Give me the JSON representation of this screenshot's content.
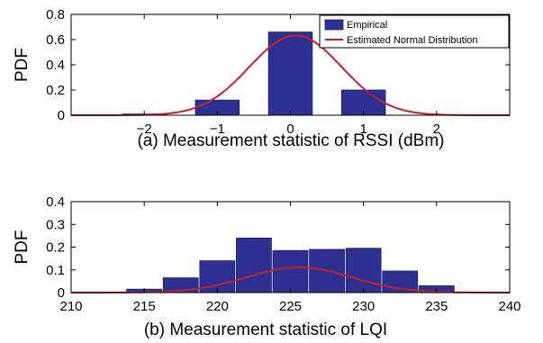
{
  "colors": {
    "bar": "#2E3192",
    "bar_edge": "#1b1d6e",
    "curve": "#C0232E",
    "axis": "#000000"
  },
  "chart_data": [
    {
      "type": "bar",
      "caption": "(a) Measurement statistic of RSSI (dBm)",
      "ylabel": "PDF",
      "xlim": [
        -3,
        3
      ],
      "ylim": [
        0,
        0.8
      ],
      "xticks": [
        -2,
        -1,
        0,
        1,
        2
      ],
      "xtick_labels": [
        "−2",
        "−1",
        "0",
        "1",
        "2"
      ],
      "yticks": [
        0,
        0.2,
        0.4,
        0.6,
        0.8
      ],
      "ytick_labels": [
        "0",
        "0.2",
        "0.4",
        "0.6",
        "0.8"
      ],
      "bar_width": 0.6,
      "x": [
        -2,
        -1,
        0,
        1
      ],
      "values": [
        0.01,
        0.12,
        0.66,
        0.2
      ],
      "legend_position": "top-right",
      "series": [
        {
          "name": "Empirical",
          "kind": "bar"
        },
        {
          "name": "Estimated Normal Distribution",
          "kind": "line",
          "distribution": "normal",
          "mean": 0.07,
          "std": 0.63
        }
      ]
    },
    {
      "type": "bar",
      "caption": "(b) Measurement statistic of LQI",
      "ylabel": "PDF",
      "xlim": [
        210,
        240
      ],
      "ylim": [
        0,
        0.4
      ],
      "xticks": [
        210,
        215,
        220,
        225,
        230,
        235,
        240
      ],
      "xtick_labels": [
        "210",
        "215",
        "220",
        "225",
        "230",
        "235",
        "240"
      ],
      "yticks": [
        0,
        0.1,
        0.2,
        0.3,
        0.4
      ],
      "ytick_labels": [
        "0",
        "0.1",
        "0.2",
        "0.3",
        "0.4"
      ],
      "bar_width": 2.4,
      "x": [
        215,
        217.5,
        220,
        222.5,
        225,
        227.5,
        230,
        232.5,
        235
      ],
      "values": [
        0.015,
        0.065,
        0.14,
        0.24,
        0.185,
        0.19,
        0.195,
        0.095,
        0.03
      ],
      "series": [
        {
          "name": "Empirical",
          "kind": "bar"
        },
        {
          "name": "Estimated Normal Distribution",
          "kind": "line",
          "distribution": "normal",
          "mean": 225.6,
          "std": 3.6
        }
      ]
    }
  ]
}
